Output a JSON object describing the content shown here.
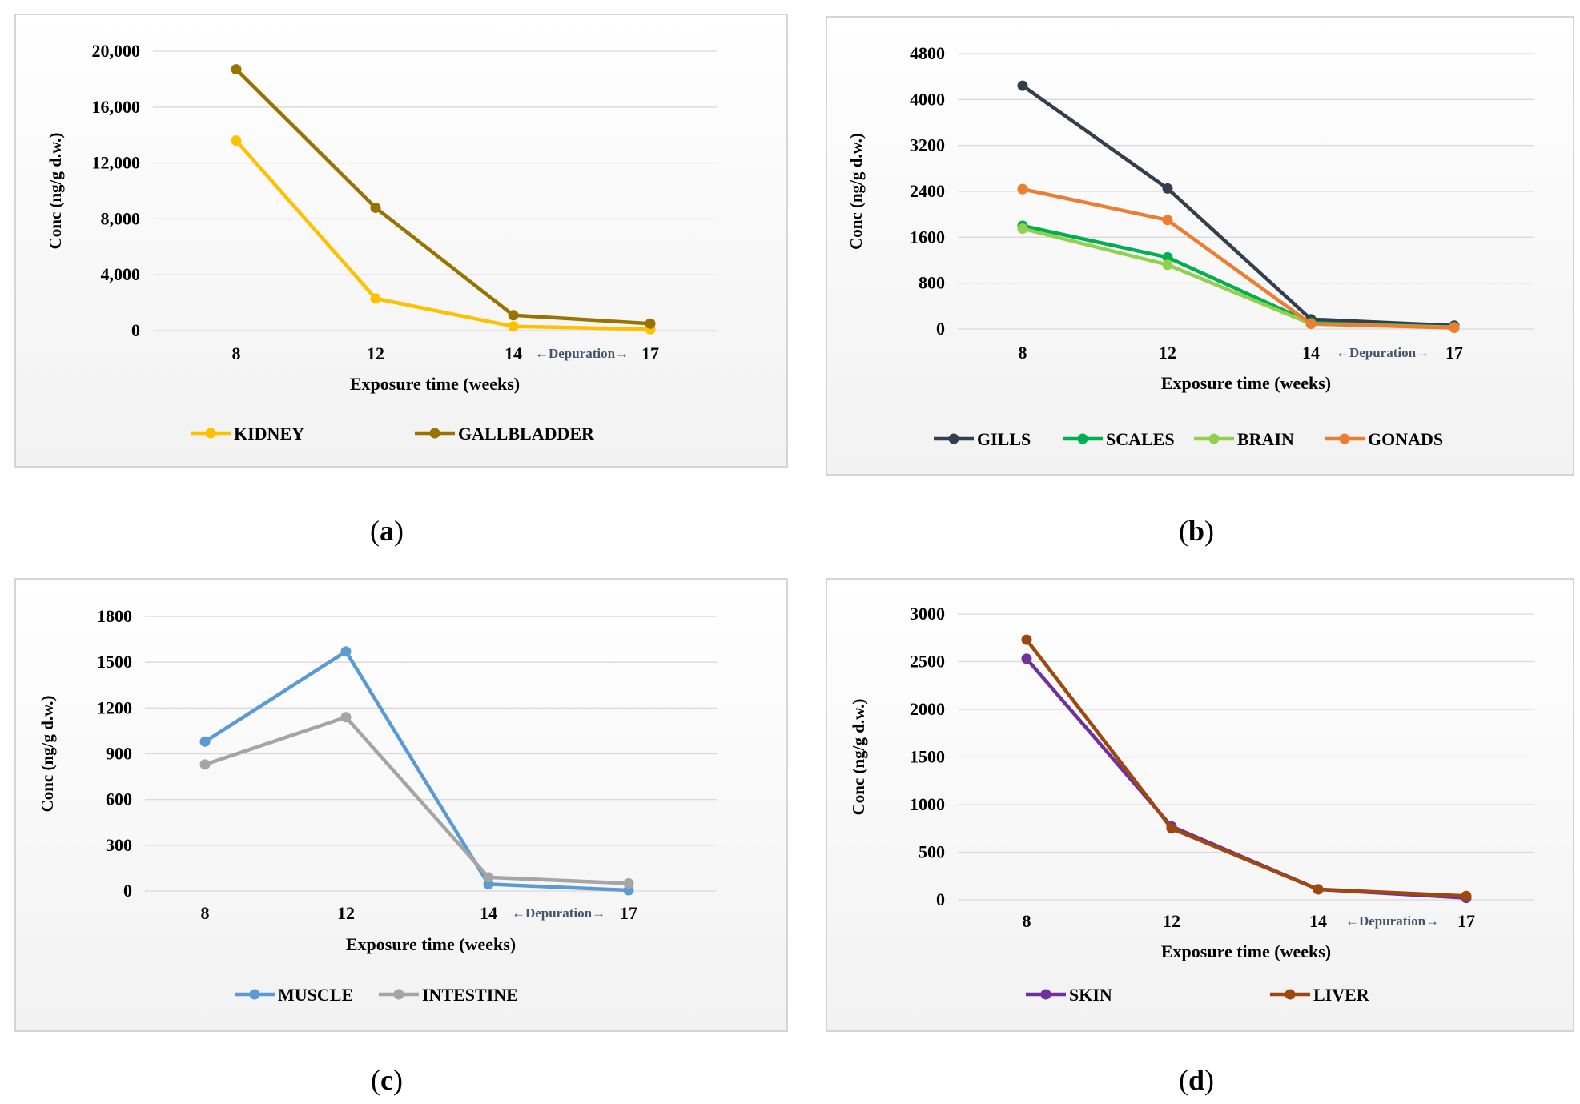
{
  "captions": [
    {
      "open": "(",
      "letter": "a",
      "close": ")"
    },
    {
      "open": "(",
      "letter": "b",
      "close": ")"
    },
    {
      "open": "(",
      "letter": "c",
      "close": ")"
    },
    {
      "open": "(",
      "letter": "d",
      "close": ")"
    }
  ],
  "depuration_label": "←Depuration→",
  "chart_data": [
    {
      "type": "line",
      "title": "",
      "xlabel": "Exposure time (weeks)",
      "ylabel": "Conc (ng/g d.w.)",
      "categories": [
        "8",
        "12",
        "14",
        "17"
      ],
      "ylim": [
        0,
        20000
      ],
      "yticks": [
        0,
        4000,
        8000,
        12000,
        16000,
        20000
      ],
      "ytick_labels": [
        "0",
        "4,000",
        "8,000",
        "12,000",
        "16,000",
        "20,000"
      ],
      "grid": true,
      "legend_position": "bottom",
      "series": [
        {
          "name": "KIDNEY",
          "color": "#FFC000",
          "values": [
            13600,
            2300,
            300,
            100
          ]
        },
        {
          "name": "GALLBLADDER",
          "color": "#997300",
          "values": [
            18700,
            8800,
            1100,
            500
          ]
        }
      ]
    },
    {
      "type": "line",
      "title": "",
      "xlabel": "Exposure time (weeks)",
      "ylabel": "Conc (ng/g d.w.)",
      "categories": [
        "8",
        "12",
        "14",
        "17"
      ],
      "ylim": [
        0,
        4800
      ],
      "yticks": [
        0,
        800,
        1600,
        2400,
        3200,
        4000,
        4800
      ],
      "ytick_labels": [
        "0",
        "800",
        "1600",
        "2400",
        "3200",
        "4000",
        "4800"
      ],
      "grid": true,
      "legend_position": "bottom",
      "series": [
        {
          "name": "GILLS",
          "color": "#323F4F",
          "values": [
            4240,
            2450,
            170,
            60
          ]
        },
        {
          "name": "SCALES",
          "color": "#00B050",
          "values": [
            1800,
            1250,
            110,
            30
          ]
        },
        {
          "name": "BRAIN",
          "color": "#92D050",
          "values": [
            1750,
            1120,
            90,
            30
          ]
        },
        {
          "name": "GONADS",
          "color": "#ED7D31",
          "values": [
            2440,
            1900,
            90,
            20
          ]
        }
      ]
    },
    {
      "type": "line",
      "title": "",
      "xlabel": "Exposure time (weeks)",
      "ylabel": "Conc (ng/g d.w.)",
      "categories": [
        "8",
        "12",
        "14",
        "17"
      ],
      "ylim": [
        0,
        1800
      ],
      "yticks": [
        0,
        300,
        600,
        900,
        1200,
        1500,
        1800
      ],
      "ytick_labels": [
        "0",
        "300",
        "600",
        "900",
        "1200",
        "1500",
        "1800"
      ],
      "grid": true,
      "legend_position": "bottom",
      "series": [
        {
          "name": "MUSCLE",
          "color": "#5B9BD5",
          "values": [
            980,
            1570,
            45,
            5
          ]
        },
        {
          "name": "INTESTINE",
          "color": "#A5A5A5",
          "values": [
            830,
            1140,
            90,
            50
          ]
        }
      ]
    },
    {
      "type": "line",
      "title": "",
      "xlabel": "Exposure time (weeks)",
      "ylabel": "Conc (ng/g d.w.)",
      "categories": [
        "8",
        "12",
        "14",
        "17"
      ],
      "ylim": [
        0,
        3000
      ],
      "yticks": [
        0,
        500,
        1000,
        1500,
        2000,
        2500,
        3000
      ],
      "ytick_labels": [
        "0",
        "500",
        "1000",
        "1500",
        "2000",
        "2500",
        "3000"
      ],
      "grid": true,
      "legend_position": "bottom",
      "series": [
        {
          "name": "SKIN",
          "color": "#7030A0",
          "values": [
            2530,
            770,
            110,
            20
          ]
        },
        {
          "name": "LIVER",
          "color": "#9E480E",
          "values": [
            2730,
            750,
            110,
            40
          ]
        }
      ]
    }
  ]
}
